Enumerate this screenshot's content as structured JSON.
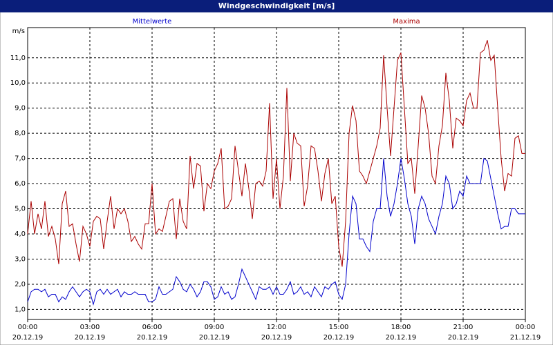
{
  "chart_data": {
    "type": "line",
    "title": "Windgeschwindigkeit [m/s]",
    "y_label": "m/s",
    "x": [
      0,
      10,
      20,
      30,
      40,
      50,
      60,
      70,
      80,
      90,
      100,
      110,
      120,
      130,
      140,
      150,
      160,
      170,
      180,
      190,
      200,
      210,
      220,
      230,
      240,
      250,
      260,
      270,
      280,
      290,
      300,
      310,
      320,
      330,
      340,
      350,
      360,
      370,
      380,
      390,
      400,
      410,
      420,
      430,
      440,
      450,
      460,
      470,
      480,
      490,
      500,
      510,
      520,
      530,
      540,
      550,
      560,
      570,
      580,
      590,
      600,
      610,
      620,
      630,
      640,
      650,
      660,
      670,
      680,
      690,
      700,
      710,
      720,
      730,
      740,
      750,
      760,
      770,
      780,
      790,
      800,
      810,
      820,
      830,
      840,
      850,
      860,
      870,
      880,
      890,
      900,
      910,
      920,
      930,
      940,
      950,
      960,
      970,
      980,
      990,
      1000,
      1010,
      1020,
      1030,
      1040,
      1050,
      1060,
      1070,
      1080,
      1090,
      1100,
      1110,
      1120,
      1130,
      1140,
      1150,
      1160,
      1170,
      1180,
      1190,
      1200,
      1210,
      1220,
      1230,
      1240,
      1250,
      1260,
      1270,
      1280,
      1290,
      1300,
      1310,
      1320,
      1330,
      1340,
      1350,
      1360,
      1370,
      1380,
      1390,
      1400,
      1410,
      1420,
      1430,
      1440
    ],
    "series": [
      {
        "name": "Mittelwerte",
        "color": "#0000cc",
        "values": [
          1.3,
          1.7,
          1.8,
          1.8,
          1.7,
          1.8,
          1.5,
          1.6,
          1.6,
          1.3,
          1.5,
          1.4,
          1.7,
          1.9,
          1.7,
          1.5,
          1.7,
          1.8,
          1.7,
          1.2,
          1.7,
          1.8,
          1.6,
          1.8,
          1.6,
          1.7,
          1.8,
          1.5,
          1.7,
          1.6,
          1.6,
          1.7,
          1.6,
          1.6,
          1.6,
          1.3,
          1.3,
          1.4,
          1.9,
          1.6,
          1.6,
          1.7,
          1.8,
          2.3,
          2.1,
          1.8,
          1.7,
          2.0,
          1.8,
          1.5,
          1.7,
          2.1,
          2.1,
          1.9,
          1.4,
          1.5,
          1.9,
          1.6,
          1.7,
          1.4,
          1.5,
          2.0,
          2.6,
          2.3,
          2.0,
          1.7,
          1.4,
          1.9,
          1.8,
          1.8,
          1.9,
          1.6,
          1.9,
          1.6,
          1.6,
          1.8,
          2.1,
          1.6,
          1.7,
          1.9,
          1.6,
          1.7,
          1.5,
          1.9,
          1.7,
          1.5,
          1.9,
          1.8,
          2.0,
          2.1,
          1.6,
          1.4,
          2.0,
          4.0,
          5.5,
          5.2,
          3.8,
          3.8,
          3.5,
          3.3,
          4.5,
          5.0,
          5.0,
          7.0,
          5.5,
          4.7,
          5.2,
          6.0,
          7.0,
          6.2,
          5.2,
          4.7,
          3.6,
          5.0,
          5.5,
          5.2,
          4.6,
          4.3,
          4.0,
          4.7,
          5.2,
          6.3,
          6.0,
          5.0,
          5.2,
          5.7,
          5.5,
          6.3,
          6.0,
          6.0,
          6.0,
          6.0,
          7.0,
          6.9,
          6.2,
          5.5,
          4.8,
          4.2,
          4.3,
          4.3,
          5.0,
          5.0,
          4.8,
          4.8,
          4.8
        ]
      },
      {
        "name": "Maxima",
        "color": "#aa0000",
        "values": [
          4.0,
          5.3,
          4.0,
          4.8,
          4.2,
          5.3,
          3.9,
          4.3,
          3.8,
          2.8,
          5.2,
          5.7,
          4.3,
          4.4,
          3.6,
          2.9,
          4.3,
          4.0,
          3.5,
          4.5,
          4.7,
          4.6,
          3.4,
          4.5,
          5.5,
          4.2,
          5.0,
          4.8,
          5.0,
          4.5,
          3.7,
          3.9,
          3.6,
          3.4,
          4.4,
          4.4,
          6.0,
          4.0,
          4.2,
          4.1,
          4.7,
          5.3,
          5.4,
          3.8,
          5.4,
          4.5,
          4.2,
          7.1,
          5.8,
          6.8,
          6.7,
          4.9,
          6.0,
          5.8,
          6.5,
          6.8,
          7.4,
          5.0,
          5.1,
          5.4,
          7.5,
          6.5,
          5.5,
          6.8,
          5.8,
          4.6,
          6.0,
          6.1,
          5.9,
          6.5,
          9.2,
          5.4,
          7.0,
          5.0,
          6.3,
          9.8,
          6.1,
          8.0,
          7.6,
          7.5,
          5.1,
          5.9,
          7.5,
          7.4,
          6.5,
          5.3,
          6.4,
          7.0,
          5.2,
          5.5,
          3.5,
          2.7,
          4.5,
          8.0,
          9.1,
          8.5,
          6.5,
          6.3,
          6.0,
          6.5,
          7.0,
          7.5,
          8.2,
          11.1,
          9.0,
          7.1,
          9.0,
          10.9,
          11.2,
          9.0,
          6.8,
          7.0,
          5.6,
          7.5,
          9.5,
          9.0,
          8.0,
          6.3,
          6.0,
          7.5,
          8.3,
          10.4,
          9.3,
          7.4,
          8.6,
          8.5,
          8.3,
          9.3,
          9.6,
          9.0,
          9.0,
          11.2,
          11.3,
          11.7,
          10.9,
          11.1,
          9.0,
          7.0,
          5.7,
          6.4,
          6.3,
          7.8,
          7.9,
          7.2,
          7.2
        ]
      }
    ],
    "xlim": [
      0,
      1440
    ],
    "xticks": [
      {
        "value": 0,
        "label": "00:00"
      },
      {
        "value": 180,
        "label": "03:00"
      },
      {
        "value": 360,
        "label": "06:00"
      },
      {
        "value": 540,
        "label": "09:00"
      },
      {
        "value": 720,
        "label": "12:00"
      },
      {
        "value": 900,
        "label": "15:00"
      },
      {
        "value": 1080,
        "label": "18:00"
      },
      {
        "value": 1260,
        "label": "21:00"
      },
      {
        "value": 1440,
        "label": "00:00"
      }
    ],
    "xtick_dates": [
      "20.12.19",
      "20.12.19",
      "20.12.19",
      "20.12.19",
      "20.12.19",
      "20.12.19",
      "20.12.19",
      "20.12.19",
      "21.12.19"
    ],
    "ylim": [
      0.6,
      12.2
    ],
    "yticks": [
      {
        "value": 1,
        "label": "1,0"
      },
      {
        "value": 2,
        "label": "2,0"
      },
      {
        "value": 3,
        "label": "3,0"
      },
      {
        "value": 4,
        "label": "4,0"
      },
      {
        "value": 5,
        "label": "5,0"
      },
      {
        "value": 6,
        "label": "6,0"
      },
      {
        "value": 7,
        "label": "7,0"
      },
      {
        "value": 8,
        "label": "8,0"
      },
      {
        "value": 9,
        "label": "9,0"
      },
      {
        "value": 10,
        "label": "10,0"
      },
      {
        "value": 11,
        "label": "11,0"
      }
    ],
    "grid": true
  }
}
